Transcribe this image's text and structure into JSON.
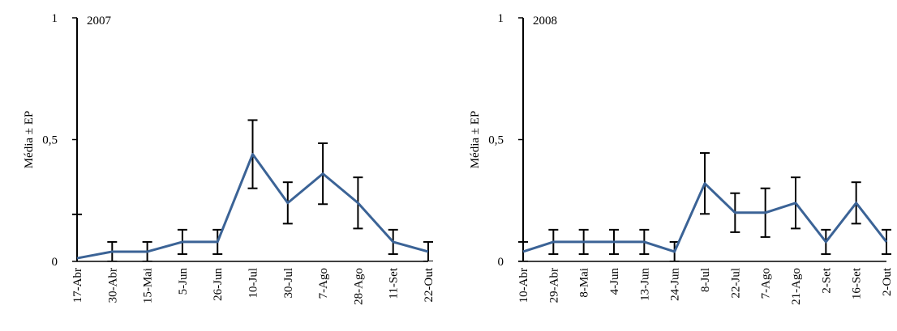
{
  "chart_data": [
    {
      "type": "line",
      "title": "2007",
      "y_label": "Média ± EP",
      "color": "#3b6396",
      "categories": [
        "17-Abr",
        "30-Abr",
        "15-Mai",
        "5-Jun",
        "26-Jun",
        "10-Jul",
        "30-Jul",
        "7-Ago",
        "28-Ago",
        "11-Set",
        "22-Out"
      ],
      "values": [
        0.013,
        0.04,
        0.04,
        0.08,
        0.08,
        0.44,
        0.24,
        0.36,
        0.24,
        0.08,
        0.04
      ],
      "errors": [
        0.18,
        0.04,
        0.04,
        0.05,
        0.05,
        0.14,
        0.085,
        0.125,
        0.105,
        0.05,
        0.04
      ],
      "ylim": [
        0,
        1
      ],
      "yticks": [
        0,
        {
          "value": 0.5,
          "label": "0,5"
        },
        1
      ]
    },
    {
      "type": "line",
      "title": "2008",
      "y_label": "Média ± EP",
      "color": "#3b6396",
      "categories": [
        "10-Abr",
        "29-Abr",
        "8-Mai",
        "4-Jun",
        "13-Jun",
        "24-Jun",
        "8-Jul",
        "22-Jul",
        "7-Ago",
        "21-Ago",
        "2-Set",
        "16-Set",
        "2-Out"
      ],
      "values": [
        0.04,
        0.08,
        0.08,
        0.08,
        0.08,
        0.04,
        0.32,
        0.2,
        0.2,
        0.24,
        0.08,
        0.24,
        0.08
      ],
      "errors": [
        0.04,
        0.05,
        0.05,
        0.05,
        0.05,
        0.04,
        0.125,
        0.08,
        0.1,
        0.105,
        0.05,
        0.085,
        0.05
      ],
      "ylim": [
        0,
        1
      ],
      "yticks": [
        0,
        {
          "value": 0.5,
          "label": "0,5"
        },
        1
      ]
    }
  ]
}
